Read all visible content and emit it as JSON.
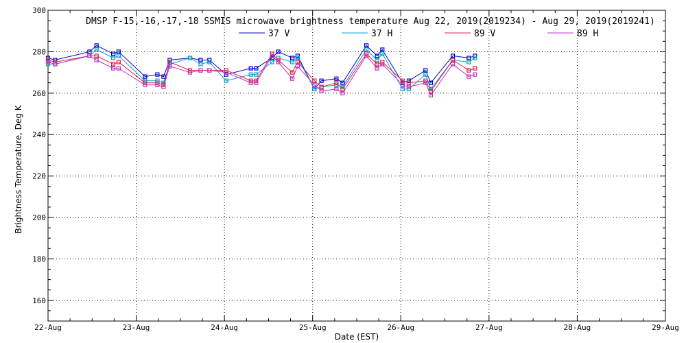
{
  "chart_data": {
    "type": "line",
    "title": "DMSP F-15,-16,-17,-18 SSMIS microwave brightness temperature Aug 22, 2019(2019234) - Aug 29, 2019(2019241)",
    "xlabel": "Date (EST)",
    "ylabel": "Brightness Temperature, Deg K",
    "xlim": [
      0,
      7
    ],
    "ylim": [
      150,
      300
    ],
    "x_ticks": [
      {
        "value": 0,
        "label": "22-Aug"
      },
      {
        "value": 1,
        "label": "23-Aug"
      },
      {
        "value": 2,
        "label": "24-Aug"
      },
      {
        "value": 3,
        "label": "25-Aug"
      },
      {
        "value": 4,
        "label": "26-Aug"
      },
      {
        "value": 5,
        "label": "27-Aug"
      },
      {
        "value": 6,
        "label": "28-Aug"
      },
      {
        "value": 7,
        "label": "29-Aug"
      }
    ],
    "y_ticks": [
      {
        "value": 160,
        "label": "160"
      },
      {
        "value": 180,
        "label": "180"
      },
      {
        "value": 200,
        "label": "200"
      },
      {
        "value": 220,
        "label": "220"
      },
      {
        "value": 240,
        "label": "240"
      },
      {
        "value": 260,
        "label": "260"
      },
      {
        "value": 280,
        "label": "280"
      },
      {
        "value": 300,
        "label": "300"
      }
    ],
    "grid": true,
    "legend_position": "top-center",
    "x": [
      0.0,
      0.08,
      0.47,
      0.55,
      0.74,
      0.8,
      1.1,
      1.24,
      1.31,
      1.38,
      1.61,
      1.73,
      1.83,
      2.02,
      2.3,
      2.36,
      2.54,
      2.61,
      2.77,
      2.83,
      3.02,
      3.1,
      3.27,
      3.34,
      3.61,
      3.73,
      3.79,
      4.02,
      4.09,
      4.28,
      4.34,
      4.59,
      4.77,
      4.84
    ],
    "series": [
      {
        "name": "37 V",
        "color": "#0000c8",
        "values": [
          277,
          276,
          280,
          283,
          279,
          280,
          268,
          269,
          268,
          276,
          277,
          276,
          276,
          269,
          272,
          272,
          277,
          280,
          277,
          278,
          262,
          266,
          267,
          265,
          283,
          278,
          281,
          265,
          266,
          271,
          265,
          278,
          277,
          278
        ]
      },
      {
        "name": "37 H",
        "color": "#00a0d0",
        "values": [
          274,
          274,
          278,
          281,
          277,
          278,
          266,
          266,
          265,
          274,
          277,
          274,
          275,
          266,
          269,
          269,
          275,
          277,
          275,
          277,
          262,
          263,
          264,
          263,
          281,
          276,
          279,
          262,
          262,
          269,
          262,
          276,
          275,
          277
        ]
      },
      {
        "name": "89 V",
        "color": "#e02040",
        "values": [
          276,
          275,
          278,
          278,
          274,
          275,
          265,
          265,
          264,
          275,
          271,
          271,
          271,
          271,
          266,
          266,
          279,
          276,
          270,
          275,
          266,
          263,
          265,
          262,
          279,
          274,
          275,
          266,
          265,
          266,
          261,
          276,
          271,
          272
        ]
      },
      {
        "name": "89 H",
        "color": "#c030c0",
        "values": [
          275,
          274,
          278,
          276,
          272,
          272,
          264,
          264,
          263,
          273,
          270,
          271,
          271,
          270,
          265,
          265,
          278,
          275,
          267,
          273,
          264,
          261,
          262,
          260,
          278,
          272,
          274,
          264,
          263,
          265,
          259,
          274,
          268,
          269
        ]
      }
    ]
  }
}
